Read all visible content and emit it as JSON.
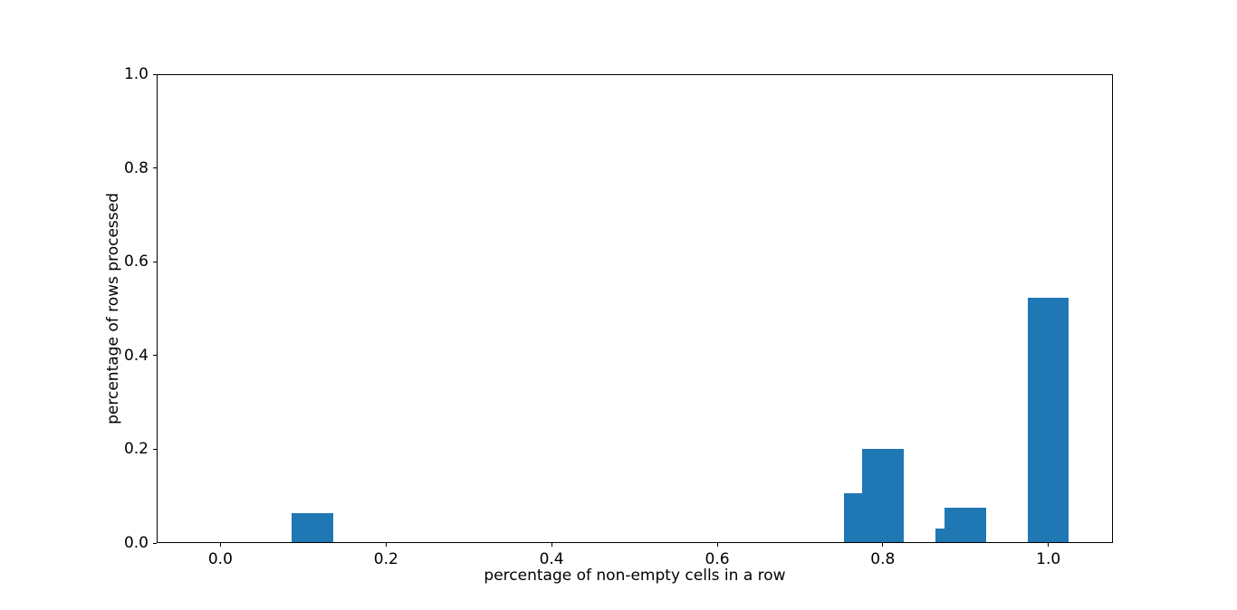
{
  "chart_data": {
    "type": "bar",
    "xlabel": "percentage of non-empty cells in a row",
    "ylabel": "percentage of rows processed",
    "bar_color": "#1f77b4",
    "bar_width": 0.05,
    "xlim": [
      -0.077,
      1.078
    ],
    "ylim": [
      0.0,
      1.0
    ],
    "grid": false,
    "bars": [
      {
        "x": 0.111,
        "height": 0.063
      },
      {
        "x": 0.778,
        "height": 0.107
      },
      {
        "x": 0.8,
        "height": 0.201
      },
      {
        "x": 0.889,
        "height": 0.031
      },
      {
        "x": 0.9,
        "height": 0.076
      },
      {
        "x": 1.0,
        "height": 0.524
      }
    ],
    "xticks": {
      "values": [
        0.0,
        0.2,
        0.4,
        0.6,
        0.8,
        1.0
      ],
      "labels": [
        "0.0",
        "0.2",
        "0.4",
        "0.6",
        "0.8",
        "1.0"
      ]
    },
    "yticks": {
      "values": [
        0.0,
        0.2,
        0.4,
        0.6,
        0.8,
        1.0
      ],
      "labels": [
        "0.0",
        "0.2",
        "0.4",
        "0.6",
        "0.8",
        "1.0"
      ]
    },
    "colors": {
      "background": "#ffffff",
      "spine": "#000000",
      "text": "#000000"
    }
  }
}
